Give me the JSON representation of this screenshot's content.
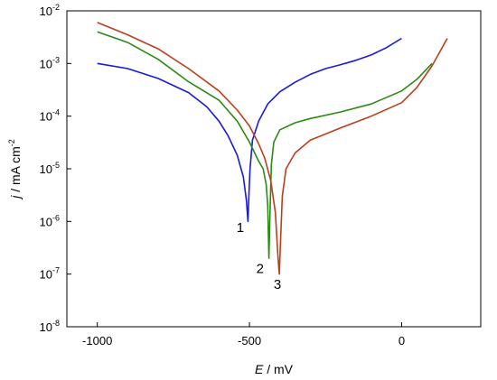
{
  "chart_data": {
    "type": "line",
    "xlabel_symbol": "E",
    "xlabel_unit": " / mV",
    "ylabel_symbol": "j",
    "ylabel_unit": " / mA cm",
    "ylabel_unit_exp": "-2",
    "xlim": [
      -1100,
      260
    ],
    "ylim": [
      1e-08,
      0.01
    ],
    "y_scale": "log",
    "grid": false,
    "x_ticks": [
      {
        "value": -1000,
        "label": "-1000"
      },
      {
        "value": -500,
        "label": "-500"
      },
      {
        "value": 0,
        "label": "0"
      }
    ],
    "y_ticks": [
      {
        "value": 0.01,
        "base": "10",
        "exp": "-2"
      },
      {
        "value": 0.001,
        "base": "10",
        "exp": "-3"
      },
      {
        "value": 0.0001,
        "base": "10",
        "exp": "-4"
      },
      {
        "value": 1e-05,
        "base": "10",
        "exp": "-5"
      },
      {
        "value": 1e-06,
        "base": "10",
        "exp": "-6"
      },
      {
        "value": 1e-07,
        "base": "10",
        "exp": "-7"
      },
      {
        "value": 1e-08,
        "base": "10",
        "exp": "-8"
      }
    ],
    "series": [
      {
        "label": "1",
        "color": "#1a1adc",
        "label_anchor": [
          -530,
          6.3e-07
        ],
        "points": [
          [
            -1000,
            0.001
          ],
          [
            -900,
            0.0008
          ],
          [
            -800,
            0.00052
          ],
          [
            -700,
            0.00028
          ],
          [
            -640,
            0.00015
          ],
          [
            -600,
            8e-05
          ],
          [
            -570,
            4.2e-05
          ],
          [
            -540,
            1.8e-05
          ],
          [
            -520,
            7e-06
          ],
          [
            -510,
            2.5e-06
          ],
          [
            -505,
            1e-06
          ],
          [
            -502,
            3e-06
          ],
          [
            -498,
            1e-05
          ],
          [
            -490,
            3.5e-05
          ],
          [
            -470,
            8e-05
          ],
          [
            -440,
            0.00017
          ],
          [
            -400,
            0.00029
          ],
          [
            -350,
            0.00044
          ],
          [
            -300,
            0.00062
          ],
          [
            -250,
            0.0008
          ],
          [
            -200,
            0.00095
          ],
          [
            -150,
            0.00115
          ],
          [
            -100,
            0.00145
          ],
          [
            -50,
            0.002
          ],
          [
            0,
            0.003
          ]
        ]
      },
      {
        "label": "2",
        "color": "#2a8a14",
        "label_anchor": [
          -465,
          1.05e-07
        ],
        "points": [
          [
            -1000,
            0.004
          ],
          [
            -900,
            0.0025
          ],
          [
            -800,
            0.0012
          ],
          [
            -700,
            0.00045
          ],
          [
            -600,
            0.0002
          ],
          [
            -540,
            8e-05
          ],
          [
            -500,
            3.2e-05
          ],
          [
            -470,
            1.4e-05
          ],
          [
            -455,
            1e-05
          ],
          [
            -445,
            5e-06
          ],
          [
            -440,
            2e-06
          ],
          [
            -436,
            2e-07
          ],
          [
            -432,
            2e-06
          ],
          [
            -428,
            1.2e-05
          ],
          [
            -420,
            3.2e-05
          ],
          [
            -400,
            5.5e-05
          ],
          [
            -350,
            7.5e-05
          ],
          [
            -300,
            9e-05
          ],
          [
            -200,
            0.00012
          ],
          [
            -100,
            0.00017
          ],
          [
            0,
            0.0003
          ],
          [
            50,
            0.0005
          ],
          [
            100,
            0.001
          ]
        ]
      },
      {
        "label": "3",
        "color": "#b8411c",
        "label_anchor": [
          -408,
          5.2e-08
        ],
        "points": [
          [
            -1000,
            0.006
          ],
          [
            -900,
            0.0035
          ],
          [
            -800,
            0.0019
          ],
          [
            -700,
            0.0008
          ],
          [
            -600,
            0.0003
          ],
          [
            -540,
            0.00013
          ],
          [
            -500,
            6.5e-05
          ],
          [
            -470,
            3e-05
          ],
          [
            -450,
            1.6e-05
          ],
          [
            -430,
            6e-06
          ],
          [
            -415,
            1.5e-06
          ],
          [
            -406,
            2e-07
          ],
          [
            -402,
            1e-07
          ],
          [
            -398,
            4e-07
          ],
          [
            -392,
            3e-06
          ],
          [
            -380,
            1e-05
          ],
          [
            -350,
            2e-05
          ],
          [
            -300,
            3.5e-05
          ],
          [
            -200,
            6e-05
          ],
          [
            -100,
            0.0001
          ],
          [
            0,
            0.00018
          ],
          [
            50,
            0.00035
          ],
          [
            100,
            0.0009
          ],
          [
            150,
            0.003
          ]
        ]
      }
    ]
  }
}
